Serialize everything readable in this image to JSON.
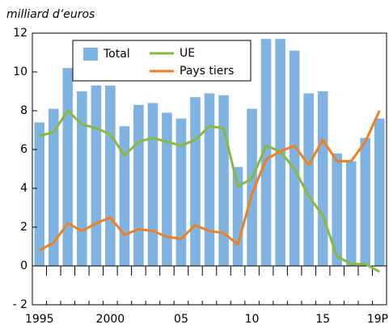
{
  "chart_data": {
    "type": "bar_line",
    "title": "milliard d’euros",
    "categories": [
      "1995",
      null,
      null,
      null,
      null,
      "2000",
      null,
      null,
      null,
      null,
      "05",
      null,
      null,
      null,
      null,
      "10",
      null,
      null,
      null,
      null,
      "15",
      null,
      null,
      null,
      "19P"
    ],
    "series": [
      {
        "name": "Total",
        "type": "bar",
        "color": "#7fb3e1",
        "values": [
          7.4,
          8.1,
          10.2,
          9.0,
          9.3,
          9.3,
          7.2,
          8.3,
          8.4,
          7.9,
          7.6,
          8.7,
          8.9,
          8.8,
          5.1,
          8.1,
          11.7,
          11.7,
          11.1,
          8.9,
          9.0,
          5.8,
          5.4,
          6.6,
          7.6
        ]
      },
      {
        "name": "UE",
        "type": "line",
        "color": "#8db73c",
        "values": [
          6.7,
          6.9,
          8.0,
          7.3,
          7.1,
          6.8,
          5.7,
          6.4,
          6.6,
          6.4,
          6.2,
          6.5,
          7.2,
          7.1,
          4.1,
          4.5,
          6.2,
          5.9,
          5.0,
          3.6,
          2.6,
          0.5,
          0.1,
          0.1,
          -0.3
        ]
      },
      {
        "name": "Pays tiers",
        "type": "line",
        "color": "#f07f22",
        "values": [
          0.8,
          1.2,
          2.2,
          1.8,
          2.2,
          2.5,
          1.6,
          1.9,
          1.8,
          1.5,
          1.4,
          2.1,
          1.8,
          1.7,
          1.1,
          3.7,
          5.5,
          5.9,
          6.2,
          5.2,
          6.5,
          5.4,
          5.4,
          6.4,
          8.0
        ]
      }
    ],
    "ylim": [
      -2,
      12
    ],
    "yticks": [
      {
        "value": -2,
        "label": "- 2"
      },
      0,
      2,
      4,
      6,
      8,
      10,
      12
    ],
    "legend": "top-left"
  }
}
